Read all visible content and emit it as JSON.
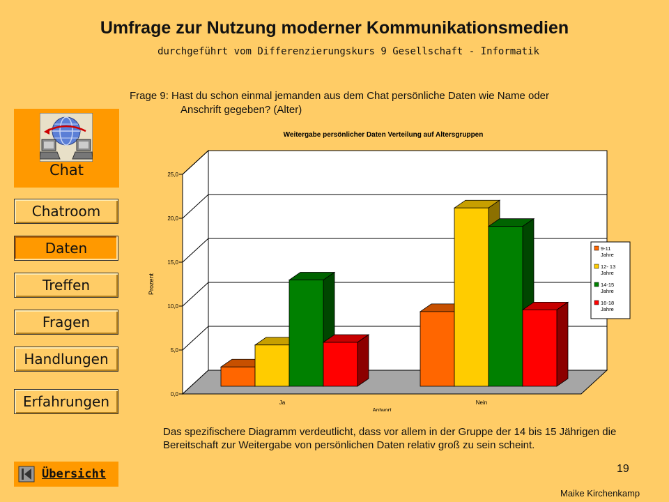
{
  "header": {
    "title": "Umfrage zur Nutzung moderner Kommunikationsmedien",
    "subtitle": "durchgeführt vom Differenzierungskurs 9 Gesellschaft - Informatik"
  },
  "question": {
    "line1": "Frage 9: Hast du schon einmal jemanden aus dem Chat persönliche Daten wie Name oder",
    "line2": "Anschrift gegeben? (Alter)"
  },
  "sidebar": {
    "section": {
      "label": "Chat",
      "icon": "chat-computers-icon"
    },
    "items": [
      {
        "label": "Chatroom",
        "active": false
      },
      {
        "label": "Daten",
        "active": true
      },
      {
        "label": "Treffen",
        "active": false
      },
      {
        "label": "Fragen",
        "active": false
      },
      {
        "label": "Handlungen",
        "active": false
      },
      {
        "label": "Erfahrungen",
        "active": false
      }
    ],
    "overview": {
      "label": "Übersicht",
      "icon": "back-arrow-icon"
    }
  },
  "chart_data": {
    "type": "bar",
    "title": "Weitergabe persönlicher Daten Verteilung auf Altersgruppen",
    "xlabel": "Antwort",
    "ylabel": "Prozent",
    "categories": [
      "Ja",
      "Nein"
    ],
    "ylim": [
      0,
      25
    ],
    "yticks": [
      "0,0",
      "5,0",
      "10,0",
      "15,0",
      "20,0",
      "25,0"
    ],
    "grid": true,
    "legend_position": "right",
    "series": [
      {
        "name": "9-11 Jahre",
        "values": [
          2.2,
          8.5
        ],
        "color": "#FF6600"
      },
      {
        "name": "12- 13 Jahre",
        "values": [
          4.7,
          20.3
        ],
        "color": "#FFCC00"
      },
      {
        "name": "14-15 Jahre",
        "values": [
          12.1,
          18.2
        ],
        "color": "#008000"
      },
      {
        "name": "16-18 Jahre",
        "values": [
          5.0,
          8.7
        ],
        "color": "#FF0000"
      }
    ]
  },
  "description": "Das spezifischere Diagramm verdeutlicht, dass vor allem in der Gruppe der 14 bis 15 Jährigen die Bereitschaft zur Weitergabe von persönlichen Daten relativ groß zu sein scheint.",
  "footer": {
    "slide_number": "19",
    "author": "Maike Kirchenkamp"
  },
  "colors": {
    "background": "#FFCC66",
    "accent": "#FF9900"
  }
}
